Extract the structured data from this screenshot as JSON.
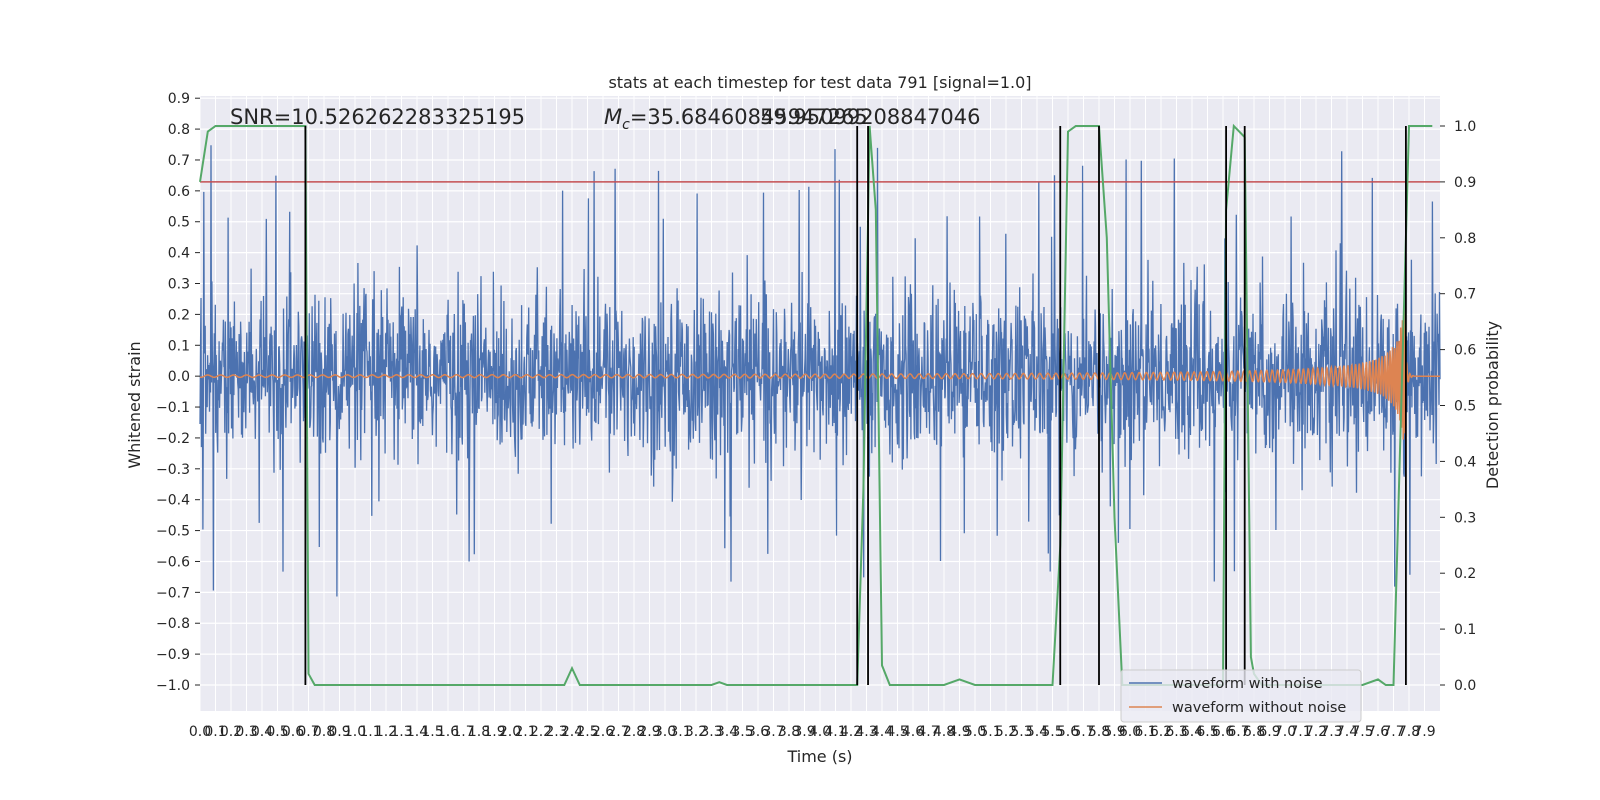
{
  "chart_data": {
    "type": "line",
    "title": "stats at each timestep for test data 791 [signal=1.0]",
    "xlabel": "Time (s)",
    "ylabel": "Whitened strain",
    "ylabel_right": "Detection probability",
    "xlim": [
      0.0,
      8.0
    ],
    "ylim": [
      -1.0,
      0.9
    ],
    "ylim_right": [
      0.0,
      1.0
    ],
    "x_ticks": [
      "0.0",
      "0.1",
      "0.2",
      "0.3",
      "0.4",
      "0.5",
      "0.6",
      "0.7",
      "0.8",
      "0.9",
      "1.0",
      "1.1",
      "1.2",
      "1.3",
      "1.4",
      "1.5",
      "1.6",
      "1.7",
      "1.8",
      "1.9",
      "2.0",
      "2.1",
      "2.2",
      "2.3",
      "2.4",
      "2.5",
      "2.6",
      "2.7",
      "2.8",
      "2.9",
      "3.0",
      "3.1",
      "3.2",
      "3.3",
      "3.4",
      "3.5",
      "3.6",
      "3.7",
      "3.8",
      "3.9",
      "4.0",
      "4.1",
      "4.2",
      "4.3",
      "4.4",
      "4.5",
      "4.6",
      "4.7",
      "4.8",
      "4.9",
      "5.0",
      "5.1",
      "5.2",
      "5.3",
      "5.4",
      "5.5",
      "5.6",
      "5.7",
      "5.8",
      "5.9",
      "6.0",
      "6.1",
      "6.2",
      "6.3",
      "6.4",
      "6.5",
      "6.6",
      "6.7",
      "6.8",
      "6.9",
      "7.0",
      "7.1",
      "7.2",
      "7.3",
      "7.4",
      "7.5",
      "7.6",
      "7.7",
      "7.8",
      "7.9"
    ],
    "y_ticks": [
      "0.9",
      "0.8",
      "0.7",
      "0.6",
      "0.5",
      "0.4",
      "0.3",
      "0.2",
      "0.1",
      "0.0",
      "−0.1",
      "−0.2",
      "−0.3",
      "−0.4",
      "−0.5",
      "−0.6",
      "−0.7",
      "−0.8",
      "−0.9",
      "−1.0"
    ],
    "y_ticks_right": [
      "1.0",
      "0.9",
      "0.8",
      "0.7",
      "0.6",
      "0.5",
      "0.4",
      "0.3",
      "0.2",
      "0.1",
      "0.0"
    ],
    "annotations": {
      "snr": "SNR=10.526262283325195",
      "mc_symbol": "M",
      "mc_sub": "c",
      "mc_value": "=35.68460845947265",
      "mc_overlap": "59.95099208847046"
    },
    "threshold": {
      "value": 0.9,
      "axis": "right",
      "color": "#c44e52"
    },
    "series": [
      {
        "name": "waveform with noise",
        "color": "#4c72b0",
        "axis": "left",
        "kind": "noise",
        "typical_amplitude": 0.3,
        "max_abs": 0.81
      },
      {
        "name": "waveform without noise",
        "color": "#dd8452",
        "axis": "left",
        "kind": "chirp",
        "merger_time": 7.78,
        "peak_amplitude": 0.33
      },
      {
        "color": "#55a868",
        "axis": "right",
        "kind": "probability",
        "x": [
          0.0,
          0.05,
          0.1,
          0.2,
          0.3,
          0.4,
          0.5,
          0.6,
          0.68,
          0.7,
          0.74,
          0.8,
          0.9,
          1.0,
          1.5,
          2.0,
          2.3,
          2.35,
          2.4,
          2.45,
          2.5,
          2.6,
          3.0,
          3.3,
          3.35,
          3.4,
          3.5,
          4.0,
          4.2,
          4.24,
          4.28,
          4.32,
          4.36,
          4.4,
          4.45,
          4.5,
          4.7,
          4.8,
          4.9,
          5.0,
          5.5,
          5.55,
          5.6,
          5.65,
          5.7,
          5.8,
          5.85,
          5.9,
          5.95,
          6.5,
          6.6,
          6.62,
          6.67,
          6.74,
          6.78,
          6.8,
          6.85,
          7.0,
          7.4,
          7.45,
          7.5,
          7.6,
          7.65,
          7.68,
          7.7,
          7.76,
          7.8,
          7.85,
          7.9,
          7.95
        ],
        "y": [
          0.9,
          0.99,
          1.0,
          1.0,
          1.0,
          1.0,
          1.0,
          1.0,
          1.0,
          0.02,
          0.0,
          0.0,
          0.0,
          0.0,
          0.0,
          0.0,
          0.0,
          0.0,
          0.03,
          0.0,
          0.0,
          0.0,
          0.0,
          0.0,
          0.005,
          0.0,
          0.0,
          0.0,
          0.0,
          0.0,
          0.35,
          1.0,
          0.85,
          0.035,
          0.0,
          0.0,
          0.0,
          0.0,
          0.01,
          0.0,
          0.0,
          0.25,
          0.99,
          1.0,
          1.0,
          1.0,
          0.8,
          0.3,
          0.0,
          0.0,
          0.0,
          0.85,
          1.0,
          0.98,
          0.05,
          0.02,
          0.0,
          0.0,
          0.0,
          0.0,
          0.0,
          0.01,
          0.0,
          0.0,
          0.0,
          0.6,
          1.0,
          1.0,
          1.0,
          1.0
        ]
      }
    ],
    "vlines": [
      0.68,
      4.24,
      4.31,
      5.55,
      5.8,
      6.62,
      6.74,
      7.78
    ],
    "grid": true,
    "legend_position": "lower-right",
    "colors": {
      "axes_bg": "#eaeaf2",
      "grid": "#ffffff",
      "vline": "#000000",
      "text": "#262626"
    }
  }
}
